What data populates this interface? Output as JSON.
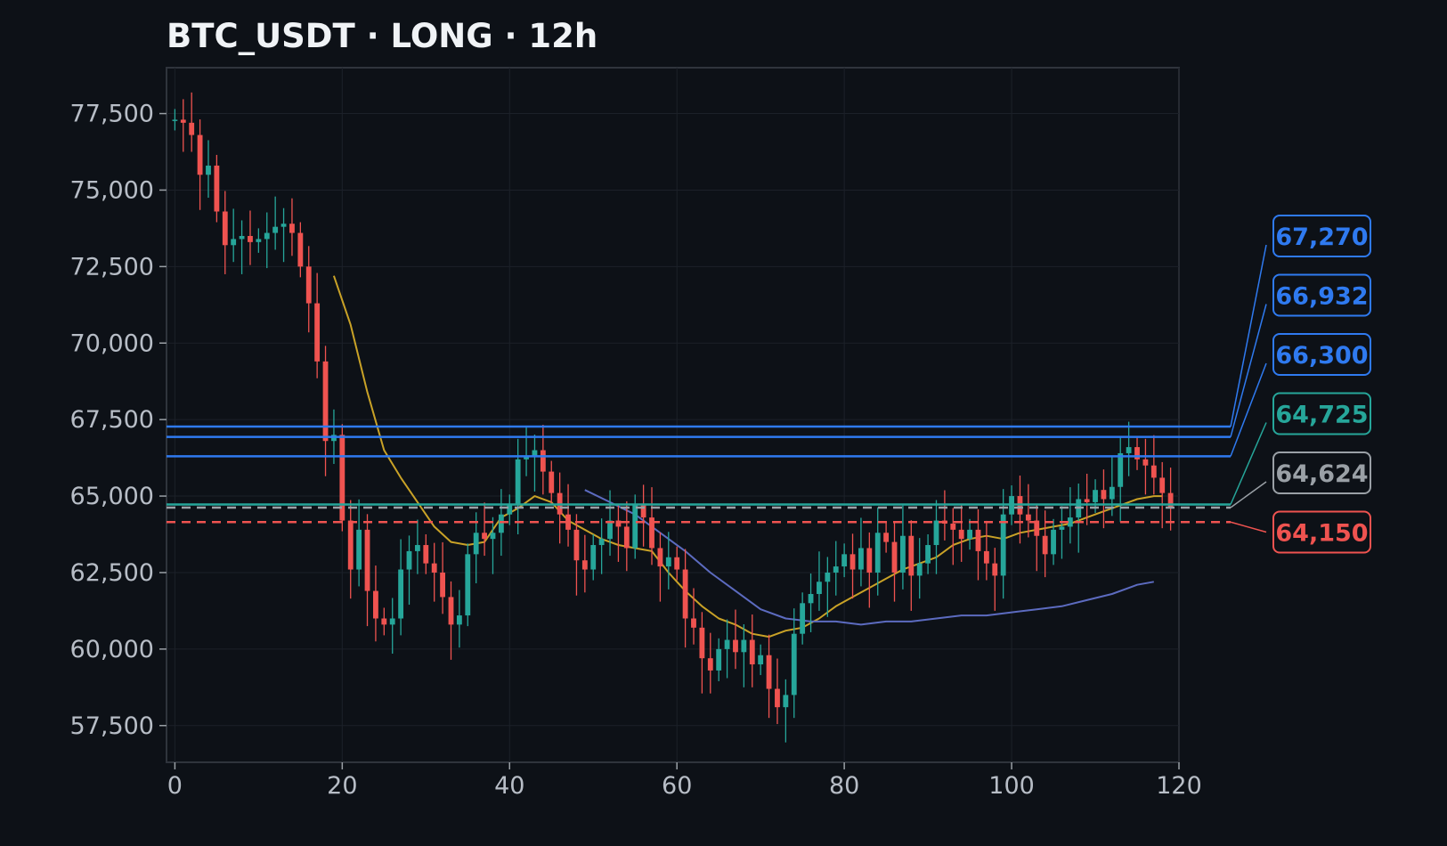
{
  "chart_data": {
    "type": "candlestick",
    "title": "BTC_USDT · LONG · 12h",
    "xlabel": "",
    "ylabel": "",
    "xlim": [
      -1,
      120
    ],
    "ylim": [
      56300,
      79000
    ],
    "x_ticks": [
      0,
      20,
      40,
      60,
      80,
      100,
      120
    ],
    "y_ticks": [
      57500,
      60000,
      62500,
      65000,
      67500,
      70000,
      72500,
      75000,
      77500
    ],
    "x_tick_labels": [
      "0",
      "20",
      "40",
      "60",
      "80",
      "100",
      "120"
    ],
    "y_tick_labels": [
      "57,500",
      "60,000",
      "62,500",
      "65,000",
      "67,500",
      "70,000",
      "72,500",
      "75,000",
      "77,500"
    ],
    "grid": true,
    "colors": {
      "up": "#26a69a",
      "down": "#ef5350",
      "fast_ma": "#c9a227",
      "slow_ma": "#5c6bc0",
      "target": "#2f7af0",
      "entry": "#26a69a",
      "current": "#9aa0a6",
      "stop": "#ef5350"
    },
    "closes": [
      77300,
      77200,
      76800,
      75500,
      75800,
      74300,
      73200,
      73400,
      73500,
      73300,
      73400,
      73600,
      73800,
      73900,
      73600,
      72500,
      71300,
      69400,
      66800,
      67000,
      64200,
      62600,
      63900,
      61900,
      61000,
      60800,
      61000,
      62600,
      63200,
      63400,
      62800,
      62500,
      61700,
      60800,
      61100,
      63100,
      63800,
      63600,
      63800,
      64400,
      64700,
      66200,
      66300,
      66500,
      65800,
      65100,
      64400,
      63900,
      62900,
      62600,
      63400,
      63600,
      64200,
      64000,
      63300,
      64700,
      64300,
      63300,
      62700,
      63000,
      62600,
      61000,
      60700,
      59700,
      59300,
      60000,
      60300,
      59900,
      60300,
      59500,
      59800,
      58700,
      58100,
      58500,
      60500,
      61500,
      61800,
      62200,
      62500,
      62700,
      63100,
      62600,
      63300,
      62500,
      63800,
      63500,
      62500,
      63700,
      62400,
      62800,
      63400,
      64200,
      64100,
      63900,
      63600,
      63900,
      63200,
      62800,
      62400,
      64400,
      65000,
      64400,
      64200,
      63700,
      63100,
      63900,
      64000,
      64300,
      64900,
      64800,
      65200,
      64900,
      65300,
      66400,
      66600,
      66200,
      66000,
      65600,
      65100,
      64624
    ],
    "opens": [
      77300,
      77300,
      77200,
      76800,
      75500,
      75800,
      74300,
      73200,
      73400,
      73500,
      73300,
      73400,
      73600,
      73800,
      73900,
      73600,
      72500,
      71300,
      69400,
      66800,
      67000,
      64200,
      62600,
      63900,
      61900,
      61000,
      60800,
      61000,
      62600,
      63200,
      63400,
      62800,
      62500,
      61700,
      60800,
      61100,
      63100,
      63800,
      63600,
      63800,
      64400,
      64700,
      66200,
      66300,
      66500,
      65800,
      65100,
      64400,
      63900,
      62900,
      62600,
      63400,
      63600,
      64200,
      64000,
      63300,
      64700,
      64300,
      63300,
      62700,
      63000,
      62600,
      61000,
      60700,
      59700,
      59300,
      60000,
      60300,
      59900,
      60300,
      59500,
      59800,
      58700,
      58100,
      58500,
      60500,
      61500,
      61800,
      62200,
      62500,
      62700,
      63100,
      62600,
      63300,
      62500,
      63800,
      63500,
      62500,
      63700,
      62400,
      62800,
      63400,
      64200,
      64100,
      63900,
      63600,
      63900,
      63200,
      62800,
      62400,
      64400,
      65000,
      64400,
      64200,
      63700,
      63100,
      63900,
      64000,
      64300,
      64900,
      64800,
      65200,
      64900,
      65300,
      66400,
      66600,
      66200,
      66000,
      65600,
      65100
    ],
    "fast_ma": {
      "name": "",
      "x": [
        19,
        21,
        23,
        25,
        27,
        29,
        31,
        33,
        35,
        37,
        39,
        41,
        43,
        45,
        47,
        49,
        51,
        53,
        55,
        57,
        59,
        61,
        63,
        65,
        67,
        69,
        71,
        73,
        75,
        77,
        79,
        81,
        83,
        85,
        87,
        89,
        91,
        93,
        95,
        97,
        99,
        101,
        103,
        105,
        107,
        109,
        111,
        113,
        115,
        117,
        118
      ],
      "y": [
        72200,
        70600,
        68400,
        66500,
        65600,
        64800,
        64000,
        63500,
        63400,
        63500,
        64300,
        64600,
        65000,
        64800,
        64200,
        63900,
        63600,
        63400,
        63300,
        63200,
        62500,
        61900,
        61400,
        61000,
        60800,
        60500,
        60400,
        60600,
        60700,
        61000,
        61400,
        61700,
        62000,
        62300,
        62600,
        62800,
        63000,
        63400,
        63600,
        63700,
        63600,
        63800,
        63900,
        64000,
        64100,
        64300,
        64500,
        64700,
        64900,
        65000,
        65000
      ]
    },
    "slow_ma": {
      "name": "",
      "x": [
        49,
        52,
        55,
        58,
        61,
        64,
        67,
        70,
        73,
        76,
        79,
        82,
        85,
        88,
        91,
        94,
        97,
        100,
        103,
        106,
        109,
        112,
        115,
        117
      ],
      "y": [
        65200,
        64800,
        64400,
        63800,
        63200,
        62500,
        61900,
        61300,
        61000,
        60900,
        60900,
        60800,
        60900,
        60900,
        61000,
        61100,
        61100,
        61200,
        61300,
        61400,
        61600,
        61800,
        62100,
        62200
      ]
    },
    "levels": [
      {
        "label": "67,270",
        "value": 67270,
        "kind": "target",
        "style": "solid"
      },
      {
        "label": "66,932",
        "value": 66932,
        "kind": "target",
        "style": "solid"
      },
      {
        "label": "66,300",
        "value": 66300,
        "kind": "target",
        "style": "solid"
      },
      {
        "label": "64,725",
        "value": 64725,
        "kind": "entry",
        "style": "solid"
      },
      {
        "label": "64,624",
        "value": 64624,
        "kind": "current",
        "style": "dashed"
      },
      {
        "label": "64,150",
        "value": 64150,
        "kind": "stop",
        "style": "dashed"
      }
    ]
  }
}
